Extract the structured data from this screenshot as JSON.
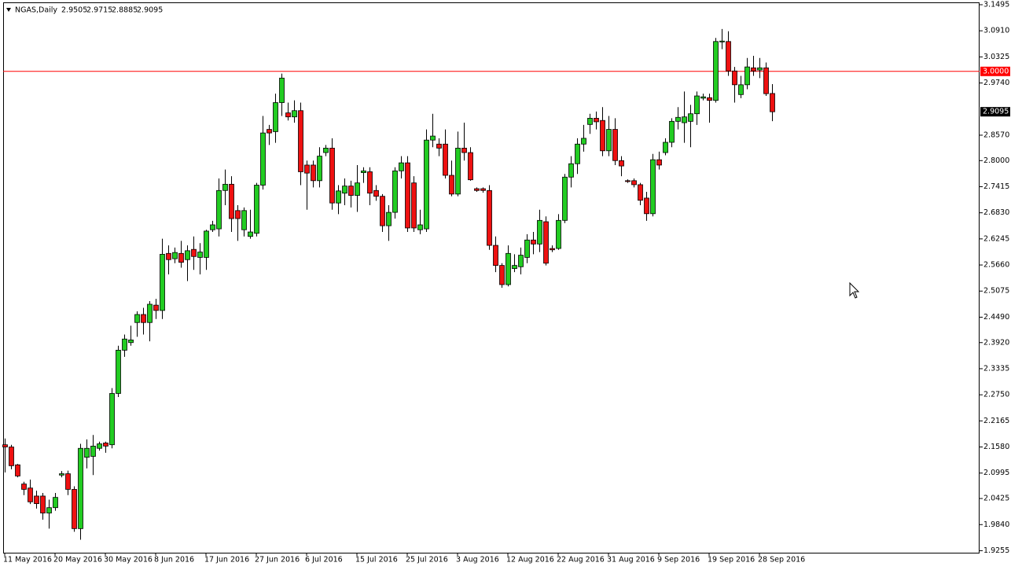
{
  "chart_data": {
    "type": "candlestick",
    "title": "NGAS,Daily",
    "categories": [
      "11 May 2016",
      null,
      null,
      null,
      null,
      null,
      null,
      null,
      "20 May 2016",
      null,
      null,
      null,
      null,
      null,
      null,
      null,
      "30 May 2016",
      null,
      null,
      null,
      null,
      null,
      null,
      null,
      "8 Jun 2016",
      null,
      null,
      null,
      null,
      null,
      null,
      null,
      "17 Jun 2016",
      null,
      null,
      null,
      null,
      null,
      null,
      null,
      "27 Jun 2016",
      null,
      null,
      null,
      null,
      null,
      null,
      null,
      "6 Jul 2016",
      null,
      null,
      null,
      null,
      null,
      null,
      null,
      "15 Jul 2016",
      null,
      null,
      null,
      null,
      null,
      null,
      null,
      "25 Jul 2016",
      null,
      null,
      null,
      null,
      null,
      null,
      null,
      "3 Aug 2016",
      null,
      null,
      null,
      null,
      null,
      null,
      null,
      "12 Aug 2016",
      null,
      null,
      null,
      null,
      null,
      null,
      null,
      "22 Aug 2016",
      null,
      null,
      null,
      null,
      null,
      null,
      null,
      "31 Aug 2016",
      null,
      null,
      null,
      null,
      null,
      null,
      null,
      "9 Sep 2016",
      null,
      null,
      null,
      null,
      null,
      null,
      null,
      "19 Sep 2016",
      null,
      null,
      null,
      null,
      null,
      null,
      null,
      "28 Sep 2016",
      null,
      null
    ],
    "open": [
      2.163,
      2.158,
      2.118,
      2.075,
      2.066,
      2.048,
      2.048,
      2.01,
      2.022,
      2.095,
      2.098,
      2.063,
      1.975,
      2.135,
      2.137,
      2.155,
      2.167,
      2.163,
      2.278,
      2.375,
      2.392,
      2.437,
      2.455,
      2.437,
      2.476,
      2.464,
      2.592,
      2.58,
      2.592,
      2.578,
      2.601,
      2.583,
      2.583,
      2.645,
      2.647,
      2.733,
      2.747,
      2.688,
      2.645,
      2.63,
      2.637,
      2.745,
      2.87,
      2.865,
      2.93,
      2.907,
      2.898,
      2.912,
      2.79,
      2.79,
      2.755,
      2.818,
      2.828,
      2.705,
      2.727,
      2.743,
      2.722,
      2.773,
      2.775,
      2.733,
      2.72,
      2.654,
      2.684,
      2.777,
      2.795,
      2.75,
      2.645,
      2.647,
      2.846,
      2.837,
      2.837,
      2.767,
      2.725,
      2.828,
      2.818,
      2.737,
      2.737,
      2.733,
      2.61,
      2.565,
      2.522,
      2.558,
      2.562,
      2.583,
      2.622,
      2.613,
      2.663,
      2.603,
      2.603,
      2.666,
      2.763,
      2.793,
      2.837,
      2.881,
      2.895,
      2.89,
      2.822,
      2.87,
      2.8,
      2.755,
      2.755,
      2.746,
      2.716,
      2.681,
      2.802,
      2.818,
      2.841,
      2.888,
      2.885,
      2.888,
      2.905,
      2.94,
      2.941,
      2.935,
      3.066,
      3.067,
      3.001,
      2.948,
      2.97,
      3.008,
      3.003,
      3.008,
      2.9505
    ],
    "high": [
      2.177,
      2.163,
      2.12,
      2.08,
      2.085,
      2.06,
      2.055,
      2.04,
      2.055,
      2.104,
      2.105,
      2.07,
      2.165,
      2.175,
      2.185,
      2.17,
      2.17,
      2.29,
      2.385,
      2.41,
      2.43,
      2.462,
      2.47,
      2.485,
      2.49,
      2.625,
      2.61,
      2.605,
      2.62,
      2.61,
      2.63,
      2.615,
      2.645,
      2.665,
      2.76,
      2.78,
      2.765,
      2.7,
      2.695,
      2.69,
      2.75,
      2.9,
      2.88,
      2.95,
      2.995,
      2.93,
      2.935,
      2.93,
      2.8,
      2.8,
      2.83,
      2.835,
      2.85,
      2.745,
      2.76,
      2.755,
      2.79,
      2.785,
      2.785,
      2.745,
      2.725,
      2.7,
      2.785,
      2.81,
      2.81,
      2.765,
      2.69,
      2.87,
      2.905,
      2.85,
      2.87,
      2.8,
      2.865,
      2.885,
      2.83,
      2.74,
      2.74,
      2.745,
      2.63,
      2.57,
      2.61,
      2.59,
      2.605,
      2.635,
      2.64,
      2.69,
      2.675,
      2.61,
      2.68,
      2.77,
      2.81,
      2.85,
      2.88,
      2.905,
      2.91,
      2.92,
      2.9,
      2.895,
      2.81,
      2.758,
      2.76,
      2.75,
      2.73,
      2.815,
      2.82,
      2.85,
      2.895,
      2.92,
      2.955,
      2.925,
      2.955,
      2.95,
      2.95,
      3.075,
      3.095,
      3.09,
      3.01,
      2.99,
      3.03,
      3.035,
      3.03,
      3.02,
      2.9715
    ],
    "low": [
      2.101,
      2.108,
      2.09,
      2.05,
      2.03,
      2.02,
      1.995,
      1.975,
      2.015,
      2.09,
      2.05,
      1.968,
      1.95,
      2.11,
      2.095,
      2.15,
      2.145,
      2.155,
      2.27,
      2.36,
      2.385,
      2.405,
      2.41,
      2.395,
      2.445,
      2.445,
      2.545,
      2.57,
      2.56,
      2.53,
      2.555,
      2.545,
      2.555,
      2.64,
      2.63,
      2.7,
      2.64,
      2.62,
      2.63,
      2.625,
      2.63,
      2.735,
      2.835,
      2.84,
      2.9,
      2.89,
      2.885,
      2.745,
      2.69,
      2.74,
      2.74,
      2.81,
      2.69,
      2.68,
      2.7,
      2.695,
      2.685,
      2.75,
      2.7,
      2.71,
      2.64,
      2.62,
      2.67,
      2.76,
      2.64,
      2.64,
      2.635,
      2.64,
      2.83,
      2.81,
      2.76,
      2.72,
      2.72,
      2.8,
      2.755,
      2.73,
      2.728,
      2.6,
      2.55,
      2.515,
      2.518,
      2.55,
      2.545,
      2.57,
      2.59,
      2.595,
      2.565,
      2.595,
      2.6,
      2.66,
      2.74,
      2.77,
      2.82,
      2.86,
      2.87,
      2.81,
      2.81,
      2.79,
      2.765,
      2.75,
      2.74,
      2.7,
      2.665,
      2.675,
      2.78,
      2.812,
      2.83,
      2.87,
      2.84,
      2.83,
      2.88,
      2.935,
      2.885,
      2.93,
      3.05,
      2.99,
      2.93,
      2.94,
      2.96,
      2.99,
      2.985,
      2.945,
      2.8885
    ],
    "close": [
      2.158,
      2.116,
      2.093,
      2.063,
      2.035,
      2.031,
      2.01,
      2.022,
      2.045,
      2.098,
      2.063,
      1.975,
      2.155,
      2.155,
      2.16,
      2.165,
      2.16,
      2.278,
      2.375,
      2.4,
      2.398,
      2.455,
      2.437,
      2.478,
      2.464,
      2.59,
      2.578,
      2.594,
      2.572,
      2.598,
      2.585,
      2.595,
      2.642,
      2.656,
      2.733,
      2.747,
      2.67,
      2.67,
      2.688,
      2.64,
      2.745,
      2.862,
      2.862,
      2.93,
      2.985,
      2.898,
      2.912,
      2.775,
      2.772,
      2.755,
      2.81,
      2.828,
      2.705,
      2.732,
      2.743,
      2.722,
      2.75,
      2.777,
      2.727,
      2.72,
      2.654,
      2.684,
      2.777,
      2.795,
      2.649,
      2.649,
      2.656,
      2.846,
      2.855,
      2.828,
      2.767,
      2.725,
      2.828,
      2.818,
      2.757,
      2.733,
      2.733,
      2.61,
      2.565,
      2.522,
      2.592,
      2.565,
      2.588,
      2.622,
      2.613,
      2.666,
      2.57,
      2.6,
      2.666,
      2.763,
      2.793,
      2.837,
      2.85,
      2.895,
      2.887,
      2.822,
      2.87,
      2.8,
      2.788,
      2.753,
      2.746,
      2.711,
      2.681,
      2.802,
      2.79,
      2.841,
      2.888,
      2.897,
      2.898,
      2.905,
      2.945,
      2.943,
      2.935,
      3.067,
      3.068,
      3.001,
      2.97,
      2.97,
      3.01,
      3.001,
      3.008,
      2.95,
      2.9095
    ],
    "up_color": "#22cc22",
    "down_color": "#ee1111",
    "ylim": [
      1.921,
      3.153
    ],
    "yticks": [
      {
        "value": 3.1495,
        "label": "3.1495"
      },
      {
        "value": 3.091,
        "label": "3.0910"
      },
      {
        "value": 3.0325,
        "label": "3.0325"
      },
      {
        "value": 2.974,
        "label": "2.9740"
      },
      {
        "value": 2.857,
        "label": "2.8570"
      },
      {
        "value": 2.8,
        "label": "2.8000"
      },
      {
        "value": 2.7415,
        "label": "2.7415"
      },
      {
        "value": 2.683,
        "label": "2.6830"
      },
      {
        "value": 2.6245,
        "label": "2.6245"
      },
      {
        "value": 2.566,
        "label": "2.5660"
      },
      {
        "value": 2.5075,
        "label": "2.5075"
      },
      {
        "value": 2.449,
        "label": "2.4490"
      },
      {
        "value": 2.392,
        "label": "2.3920"
      },
      {
        "value": 2.3335,
        "label": "2.3335"
      },
      {
        "value": 2.275,
        "label": "2.2750"
      },
      {
        "value": 2.2165,
        "label": "2.2165"
      },
      {
        "value": 2.158,
        "label": "2.1580"
      },
      {
        "value": 2.0995,
        "label": "2.0995"
      },
      {
        "value": 2.0425,
        "label": "2.0425"
      },
      {
        "value": 1.984,
        "label": "1.9840"
      },
      {
        "value": 1.9255,
        "label": "1.9255"
      }
    ],
    "hline": {
      "value": 3,
      "label": "3.0000",
      "color": "#ff0000"
    }
  }
}
